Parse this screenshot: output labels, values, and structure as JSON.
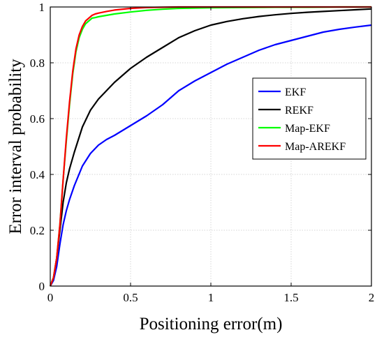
{
  "chart_data": {
    "type": "line",
    "title": "",
    "xlabel": "Positioning error(m)",
    "ylabel": "Error interval probability",
    "xlim": [
      0,
      2
    ],
    "ylim": [
      0,
      1
    ],
    "xticks": [
      0,
      0.5,
      1,
      1.5,
      2
    ],
    "xtick_labels": [
      "0",
      "0.5",
      "1",
      "1.5",
      "2"
    ],
    "yticks": [
      0,
      0.2,
      0.4,
      0.6,
      0.8,
      1
    ],
    "ytick_labels": [
      "0",
      "0.2",
      "0.4",
      "0.6",
      "0.8",
      "1"
    ],
    "grid": true,
    "legend_position": "right-middle",
    "series": [
      {
        "name": "EKF",
        "color": "#0000ff",
        "x": [
          0,
          0.02,
          0.04,
          0.06,
          0.08,
          0.1,
          0.12,
          0.15,
          0.2,
          0.25,
          0.3,
          0.35,
          0.4,
          0.5,
          0.6,
          0.7,
          0.8,
          0.9,
          1.0,
          1.1,
          1.2,
          1.3,
          1.4,
          1.5,
          1.6,
          1.7,
          1.8,
          1.9,
          2.0
        ],
        "y": [
          0,
          0.02,
          0.07,
          0.15,
          0.22,
          0.27,
          0.31,
          0.36,
          0.43,
          0.475,
          0.505,
          0.525,
          0.54,
          0.575,
          0.61,
          0.65,
          0.7,
          0.735,
          0.765,
          0.795,
          0.82,
          0.845,
          0.865,
          0.88,
          0.895,
          0.91,
          0.92,
          0.928,
          0.935
        ]
      },
      {
        "name": "REKF",
        "color": "#000000",
        "x": [
          0,
          0.02,
          0.04,
          0.06,
          0.08,
          0.1,
          0.12,
          0.15,
          0.2,
          0.25,
          0.3,
          0.35,
          0.4,
          0.5,
          0.6,
          0.7,
          0.8,
          0.9,
          1.0,
          1.1,
          1.2,
          1.3,
          1.4,
          1.5,
          1.6,
          1.7,
          1.8,
          1.9,
          2.0
        ],
        "y": [
          0,
          0.03,
          0.1,
          0.2,
          0.3,
          0.37,
          0.42,
          0.48,
          0.57,
          0.63,
          0.67,
          0.7,
          0.73,
          0.78,
          0.82,
          0.855,
          0.89,
          0.915,
          0.935,
          0.948,
          0.958,
          0.966,
          0.972,
          0.977,
          0.981,
          0.984,
          0.987,
          0.99,
          0.993
        ]
      },
      {
        "name": "Map-EKF",
        "color": "#00ff00",
        "x": [
          0,
          0.02,
          0.04,
          0.06,
          0.08,
          0.1,
          0.12,
          0.14,
          0.16,
          0.18,
          0.2,
          0.22,
          0.24,
          0.26,
          0.28,
          0.3,
          0.35,
          0.4,
          0.5,
          0.6,
          0.7,
          0.8,
          1.0,
          1.2,
          1.4,
          1.6,
          1.8,
          2.0
        ],
        "y": [
          0,
          0.03,
          0.1,
          0.22,
          0.38,
          0.52,
          0.65,
          0.76,
          0.84,
          0.89,
          0.92,
          0.94,
          0.95,
          0.96,
          0.962,
          0.965,
          0.97,
          0.975,
          0.982,
          0.988,
          0.992,
          0.995,
          0.997,
          0.998,
          0.999,
          0.999,
          1.0,
          1.0
        ]
      },
      {
        "name": "Map-AREKF",
        "color": "#ff0000",
        "x": [
          0,
          0.02,
          0.04,
          0.06,
          0.08,
          0.1,
          0.12,
          0.14,
          0.16,
          0.18,
          0.2,
          0.22,
          0.24,
          0.26,
          0.28,
          0.3,
          0.35,
          0.4,
          0.5,
          0.6,
          0.7,
          0.8,
          1.0,
          1.2,
          1.4,
          1.6,
          1.8,
          2.0
        ],
        "y": [
          0,
          0.03,
          0.1,
          0.22,
          0.38,
          0.53,
          0.66,
          0.77,
          0.85,
          0.9,
          0.93,
          0.95,
          0.96,
          0.97,
          0.975,
          0.978,
          0.984,
          0.989,
          0.995,
          0.998,
          0.999,
          1.0,
          1.0,
          1.0,
          1.0,
          1.0,
          1.0,
          1.0
        ]
      }
    ]
  }
}
